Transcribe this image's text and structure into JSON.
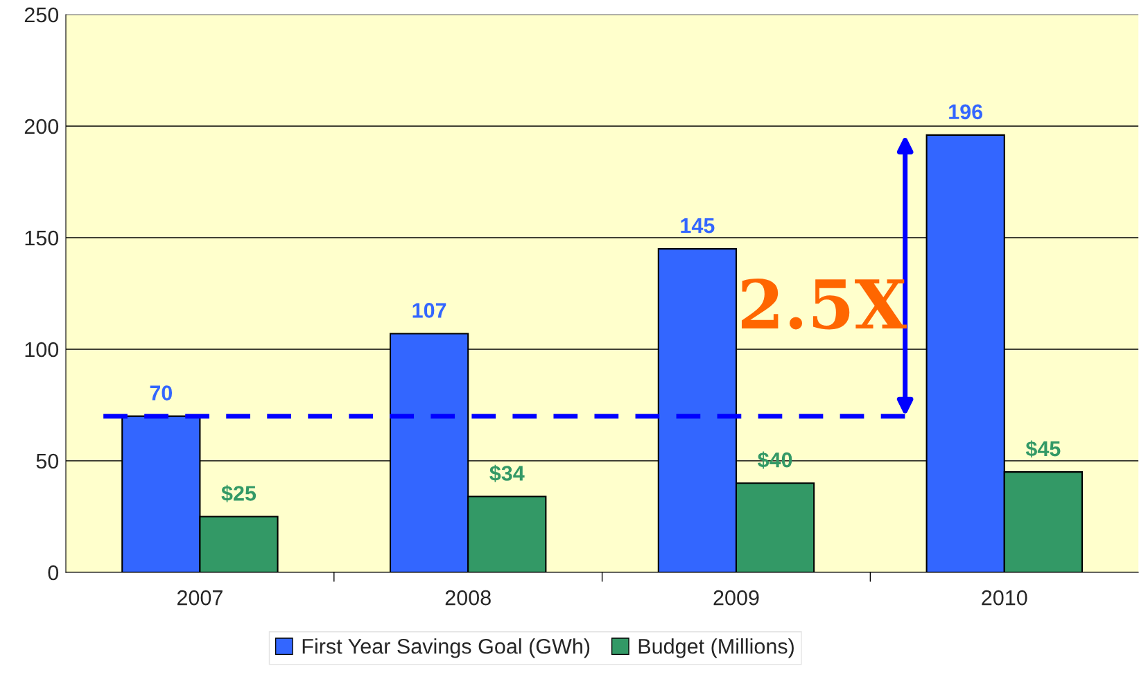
{
  "chart_data": {
    "type": "bar",
    "categories": [
      "2007",
      "2008",
      "2009",
      "2010"
    ],
    "series": [
      {
        "name": "First Year Savings Goal (GWh)",
        "color": "#3366ff",
        "values": [
          70,
          107,
          145,
          196
        ],
        "value_labels": [
          "70",
          "107",
          "145",
          "196"
        ]
      },
      {
        "name": "Budget (Millions)",
        "color": "#339966",
        "values": [
          25,
          34,
          40,
          45
        ],
        "value_labels": [
          "$25",
          "$34",
          "$40",
          "$45"
        ]
      }
    ],
    "ylim": [
      0,
      250
    ],
    "yticks": [
      0,
      50,
      100,
      150,
      200,
      250
    ],
    "grid": "y",
    "legend": "bottom",
    "ref_lines": [
      {
        "axis": "y",
        "value": 70,
        "color": "#0000ff",
        "line_style": "dashed"
      }
    ],
    "annotations": [
      "2.5X"
    ]
  }
}
